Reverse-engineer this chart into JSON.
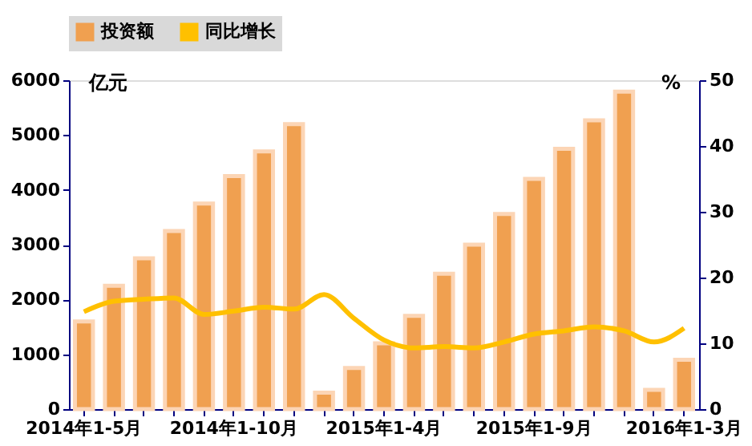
{
  "chart_data": {
    "type": "bar",
    "categories": [
      "2014年1-5月",
      null,
      null,
      null,
      null,
      "2014年1-10月",
      null,
      null,
      null,
      null,
      "2015年1-4月",
      null,
      null,
      null,
      null,
      "2015年1-9月",
      null,
      null,
      null,
      null,
      "2016年1-3月"
    ],
    "series": [
      {
        "name": "投资额",
        "color": "#f0a050",
        "values": [
          1600,
          2250,
          2750,
          3250,
          3750,
          4250,
          4700,
          5200,
          300,
          750,
          1200,
          1700,
          2470,
          3000,
          3560,
          4200,
          4750,
          5270,
          5790,
          350,
          900
        ]
      },
      {
        "name": "同比增长",
        "type": "line",
        "axis": "y2",
        "color": "#ffc000",
        "values": [
          14.8,
          16.4,
          16.7,
          16.9,
          14.4,
          14.9,
          15.5,
          15.2,
          17.4,
          13.8,
          10.5,
          9.3,
          9.5,
          9.3,
          10.2,
          11.4,
          11.9,
          12.5,
          11.9,
          10.2,
          12.3
        ]
      }
    ],
    "ylabel": "亿元",
    "y2label": "%",
    "ylim": [
      0,
      6000
    ],
    "yticks": [
      0,
      1000,
      2000,
      3000,
      4000,
      5000,
      6000
    ],
    "y2lim": [
      0,
      50
    ],
    "y2ticks": [
      0,
      10,
      20,
      30,
      40,
      50
    ],
    "legend": "top",
    "grid": false
  }
}
